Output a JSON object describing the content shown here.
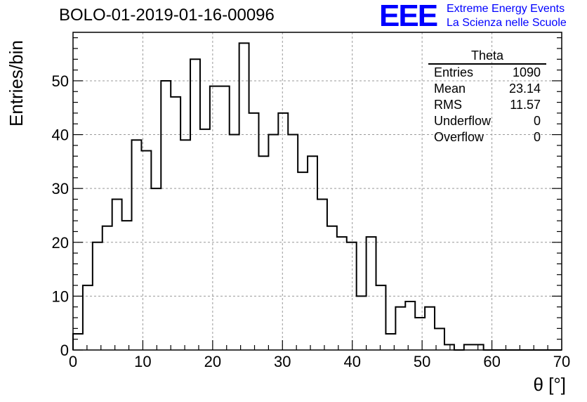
{
  "title": "BOLO-01-2019-01-16-00096",
  "logo": {
    "letters": "EEE",
    "line1": "Extreme Energy Events",
    "line2": "La Scienza nelle Scuole",
    "color": "#0000ff"
  },
  "stats": {
    "title": "Theta",
    "rows": [
      {
        "key": "Entries",
        "value": "1090"
      },
      {
        "key": "Mean",
        "value": "23.14"
      },
      {
        "key": "RMS",
        "value": "11.57"
      },
      {
        "key": "Underflow",
        "value": "0"
      },
      {
        "key": "Overflow",
        "value": "0"
      }
    ]
  },
  "chart_data": {
    "type": "bar",
    "title": "BOLO-01-2019-01-16-00096",
    "xlabel": "θ [°]",
    "ylabel": "Entries/bin",
    "xlim": [
      0,
      70
    ],
    "ylim": [
      0,
      59
    ],
    "grid": true,
    "xticks": [
      0,
      10,
      20,
      30,
      40,
      50,
      60,
      70
    ],
    "yticks": [
      0,
      10,
      20,
      30,
      40,
      50
    ],
    "bin_width": 1.4,
    "bin_edges_start": 0,
    "values": [
      3,
      12,
      20,
      23,
      28,
      24,
      39,
      37,
      30,
      50,
      47,
      39,
      54,
      41,
      49,
      49,
      40,
      57,
      44,
      36,
      40,
      44,
      40,
      33,
      36,
      28,
      23,
      21,
      20,
      10,
      21,
      12,
      3,
      8,
      9,
      6,
      8,
      4,
      1,
      0,
      1,
      1,
      0,
      0,
      0,
      0,
      0,
      0,
      0,
      0
    ],
    "line_color": "#000000"
  }
}
